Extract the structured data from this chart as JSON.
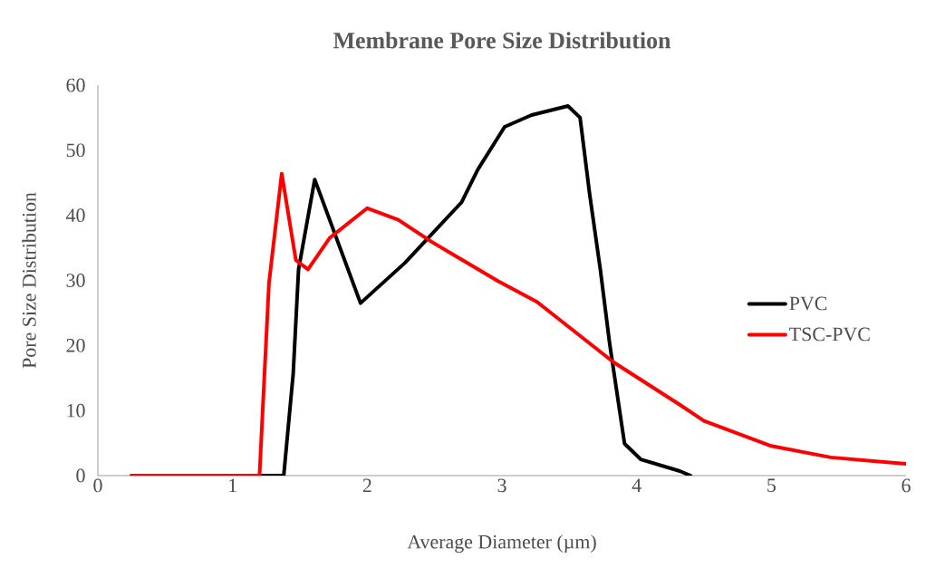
{
  "chart_data": {
    "type": "line",
    "title": "Membrane Pore Size Distribution",
    "xlabel": "Average Diameter (µm)",
    "ylabel": "Pore Size Distribution",
    "xlim": [
      0,
      6
    ],
    "xticks": [
      0,
      1,
      2,
      3,
      4,
      5,
      6
    ],
    "ylim": [
      0,
      60
    ],
    "yticks": [
      0,
      10,
      20,
      30,
      40,
      50,
      60
    ],
    "grid": false,
    "legend": "right",
    "marker": "none",
    "line_style": "solid",
    "series": [
      {
        "name": "PVC",
        "color": "#000000",
        "x": [
          0.25,
          1.38,
          1.45,
          1.49,
          1.61,
          1.95,
          2.28,
          2.7,
          2.82,
          3.02,
          3.22,
          3.49,
          3.58,
          3.65,
          3.73,
          3.8,
          3.91,
          4.03,
          4.32,
          4.4
        ],
        "values": [
          0,
          0,
          15.6,
          31.7,
          45.5,
          26.5,
          32.7,
          42,
          47,
          53.6,
          55.4,
          56.8,
          55,
          43.4,
          31.7,
          20.2,
          4.9,
          2.5,
          0.7,
          0
        ]
      },
      {
        "name": "TSC-PVC",
        "color": "#ff0000",
        "x": [
          0.25,
          1.2,
          1.27,
          1.365,
          1.47,
          1.56,
          1.72,
          2.0,
          2.23,
          2.48,
          2.97,
          3.26,
          3.83,
          4.32,
          4.5,
          4.99,
          5.44,
          6.0
        ],
        "values": [
          0,
          0,
          29.5,
          46.4,
          33.1,
          31.7,
          36.5,
          41.1,
          39.3,
          35.9,
          29.9,
          26.7,
          17.4,
          10.9,
          8.4,
          4.6,
          2.8,
          1.8
        ]
      }
    ]
  }
}
